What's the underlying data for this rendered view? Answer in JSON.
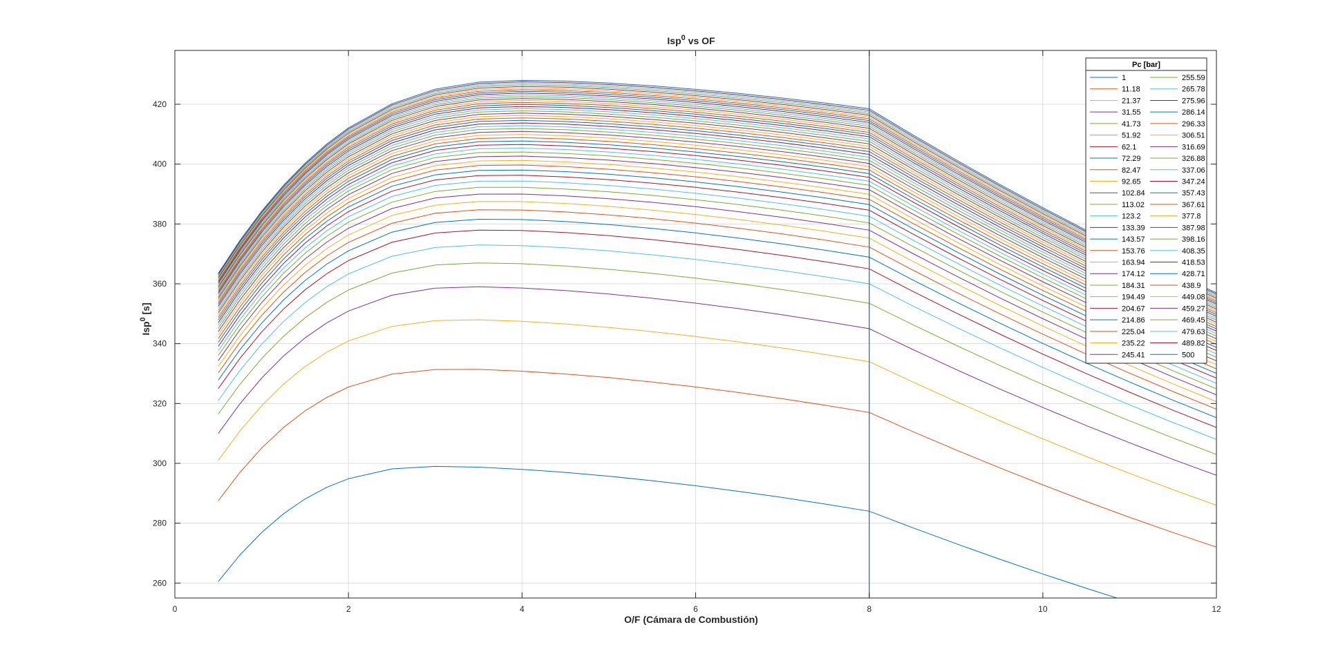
{
  "chart_data": {
    "type": "line",
    "title": {
      "main": "Isp",
      "sup": "0",
      "tail": " vs OF"
    },
    "xlabel": "O/F (Cámara de Combustión)",
    "ylabel": {
      "main": "Isp",
      "sup": "0",
      "tail": " [s]"
    },
    "xlim": [
      0,
      12
    ],
    "ylim": [
      255,
      438
    ],
    "xticks": [
      0,
      2,
      4,
      6,
      8,
      10,
      12
    ],
    "yticks": [
      260,
      280,
      300,
      320,
      340,
      360,
      380,
      400,
      420
    ],
    "grid": true,
    "legend": {
      "title": "Pc [bar]",
      "placement": "top-right",
      "columns": 2
    },
    "vertical_line_x": 8,
    "x": [
      0.5,
      0.75,
      1,
      1.25,
      1.5,
      1.75,
      2,
      2.5,
      3,
      3.5,
      4,
      4.5,
      5,
      5.5,
      6,
      6.5,
      7,
      7.5,
      8,
      8.5,
      9,
      9.5,
      10,
      10.5,
      11,
      11.5,
      12
    ],
    "pressures": [
      1,
      11.18,
      21.37,
      31.55,
      41.73,
      51.92,
      62.1,
      72.29,
      82.47,
      92.65,
      102.84,
      113.02,
      123.2,
      133.39,
      143.57,
      153.76,
      163.94,
      174.12,
      184.31,
      194.49,
      204.67,
      214.86,
      225.04,
      235.22,
      245.41,
      255.59,
      265.78,
      275.96,
      286.14,
      296.33,
      306.51,
      316.69,
      326.88,
      337.06,
      347.24,
      357.43,
      367.61,
      377.8,
      387.98,
      398.16,
      408.35,
      418.53,
      428.71,
      438.9,
      449.08,
      459.27,
      469.45,
      479.63,
      489.82,
      500
    ],
    "key_series": [
      {
        "name": "1",
        "start": 260.5,
        "peak": 299.0,
        "peak_x": 3.1,
        "at8": 284.0,
        "end": 245.0
      },
      {
        "name": "11.18",
        "start": 287.5,
        "peak": 331.5,
        "peak_x": 3.3,
        "at8": 317.0,
        "end": 272.0
      },
      {
        "name": "21.37",
        "start": 301.0,
        "peak": 348.0,
        "peak_x": 3.4,
        "at8": 334.0,
        "end": 286.0
      },
      {
        "name": "31.55",
        "start": 310.0,
        "peak": 359.0,
        "peak_x": 3.5,
        "at8": 345.0,
        "end": 296.0
      },
      {
        "name": "41.73",
        "start": 316.5,
        "peak": 367.0,
        "peak_x": 3.6,
        "at8": 353.5,
        "end": 303.0
      },
      {
        "name": "51.92",
        "start": 321.0,
        "peak": 373.0,
        "peak_x": 3.65,
        "at8": 360.0,
        "end": 308.0
      },
      {
        "name": "62.1",
        "start": 325.0,
        "peak": 378.0,
        "peak_x": 3.7,
        "at8": 365.0,
        "end": 312.0
      },
      {
        "name": "500",
        "start": 363.5,
        "peak": 428.0,
        "peak_x": 4.1,
        "at8": 418.5,
        "end": 357.0
      }
    ],
    "series_colors": [
      "#0072BD",
      "#D95319",
      "#EDB120",
      "#7E2F8E",
      "#77AC30",
      "#4DBEEE",
      "#A2142F"
    ]
  }
}
